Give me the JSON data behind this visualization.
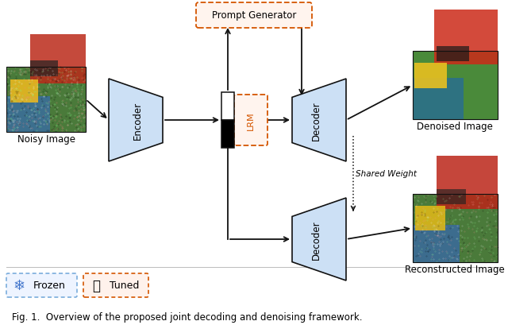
{
  "title": "Fig. 1.  Overview of the proposed joint decoding and denoising framework.",
  "background_color": "#ffffff",
  "encoder_label": "Encoder",
  "decoder_label": "Decoder",
  "decoder2_label": "Decoder",
  "lrm_label": "LRM",
  "prompt_gen_label": "Prompt Generator",
  "noisy_image_label": "Noisy Image",
  "denoised_image_label": "Denoised Image",
  "reconstructed_image_label": "Reconstructed Image",
  "shared_weight_label": "Shared Weight",
  "frozen_label": "Frozen",
  "tuned_label": "Tuned",
  "light_blue": "#cce0f5",
  "orange_dashed": "#d45500",
  "blue_dashed": "#7aaddc",
  "arrow_color": "#111111",
  "block_edge": "#333333"
}
